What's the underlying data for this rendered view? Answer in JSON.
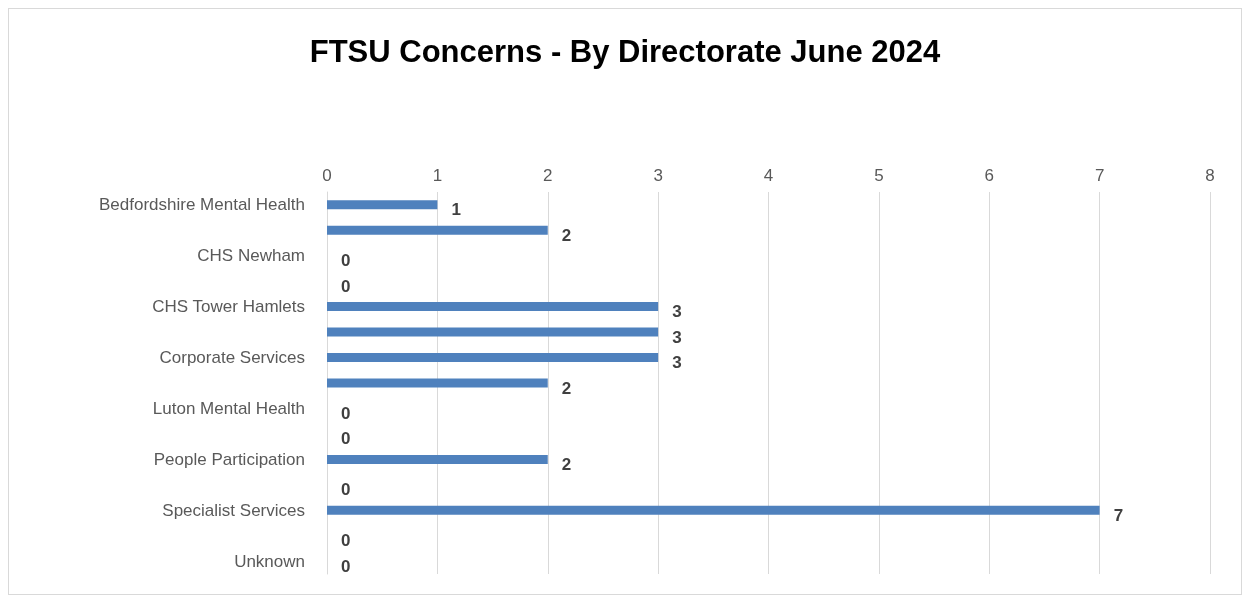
{
  "chart_data": {
    "type": "bar",
    "orientation": "horizontal",
    "title": "FTSU Concerns - By Directorate June 2024",
    "categories": [
      "Bedfordshire Mental Health",
      null,
      "CHS Newham",
      null,
      "CHS Tower Hamlets",
      null,
      "Corporate Services",
      null,
      "Luton Mental Health",
      null,
      "People Participation",
      null,
      "Specialist Services",
      null,
      "Unknown"
    ],
    "values": [
      1,
      2,
      0,
      0,
      3,
      3,
      3,
      2,
      0,
      0,
      2,
      0,
      7,
      0,
      0
    ],
    "color": "#4f81bd",
    "xlim": [
      0,
      8
    ],
    "xticks": [
      0,
      1,
      2,
      3,
      4,
      5,
      6,
      7,
      8
    ],
    "grid": "x",
    "data_labels": true
  }
}
